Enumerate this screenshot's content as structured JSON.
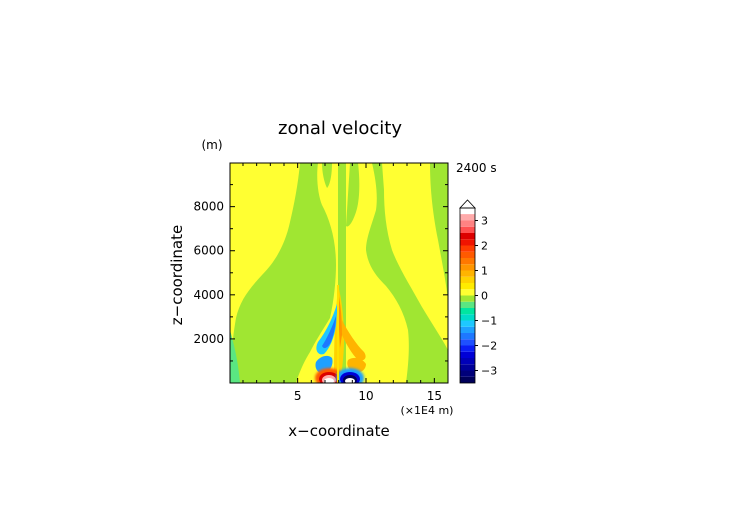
{
  "chart_data": {
    "type": "heatmap",
    "title": "zonal velocity",
    "xlabel": "x−coordinate",
    "ylabel": "z−coordinate",
    "y_unit": "(m)",
    "x_unit": "(×1E4 m)",
    "time_label": "2400 s",
    "xlim": [
      0.05,
      16.0
    ],
    "ylim": [
      0,
      9980
    ],
    "x_ticks": [
      5,
      10,
      15
    ],
    "x_tick_labels": [
      "5",
      "10",
      "15"
    ],
    "y_ticks": [
      2000,
      4000,
      6000,
      8000
    ],
    "y_tick_labels": [
      "2000",
      "4000",
      "6000",
      "8000"
    ],
    "colorbar": {
      "levels": [
        -3.5,
        -3.25,
        -3.0,
        -2.75,
        -2.5,
        -2.25,
        -2.0,
        -1.75,
        -1.5,
        -1.25,
        -1.0,
        -0.75,
        -0.5,
        -0.25,
        0.0,
        0.25,
        0.5,
        0.75,
        1.0,
        1.25,
        1.5,
        1.75,
        2.0,
        2.25,
        2.5,
        2.75,
        3.0,
        3.25,
        3.5
      ],
      "colors": [
        "#00005a",
        "#00007a",
        "#000099",
        "#0000b8",
        "#0000d6",
        "#0a1ef5",
        "#1e50ff",
        "#1e78ff",
        "#1ea0ff",
        "#1ec8ff",
        "#00dcc8",
        "#00e6a0",
        "#5ae682",
        "#a0e632",
        "#ffff32",
        "#ffeb00",
        "#ffd200",
        "#ffb400",
        "#ff9600",
        "#ff7800",
        "#ff5a00",
        "#ff3c00",
        "#f01400",
        "#dc0000",
        "#ff5050",
        "#ff8282",
        "#ffaaaa"
      ],
      "tick_values": [
        -3,
        -2,
        -1,
        0,
        1,
        2,
        3
      ],
      "tick_labels": [
        "−3",
        "−2",
        "−1",
        "0",
        "1",
        "2",
        "3"
      ],
      "extend": "max"
    },
    "field_description_regions": [
      {
        "name": "dominant background",
        "value_range": [
          -0.25,
          0.25
        ]
      },
      {
        "name": "positive lobes left and right of center, rising to top",
        "value_range": [
          0.0,
          0.25
        ]
      },
      {
        "name": "negative band at left edge low levels",
        "value_range": [
          -0.25,
          0.0
        ]
      },
      {
        "name": "central updraft column",
        "x": 8.1,
        "z_top": 4500,
        "value_range": [
          -1.0,
          1.0
        ]
      },
      {
        "name": "strong positive core near surface",
        "x": 7.3,
        "z": 200,
        "value": 3.5
      },
      {
        "name": "strong negative core near surface",
        "x": 8.6,
        "z": 200,
        "value": -3.5
      }
    ]
  }
}
